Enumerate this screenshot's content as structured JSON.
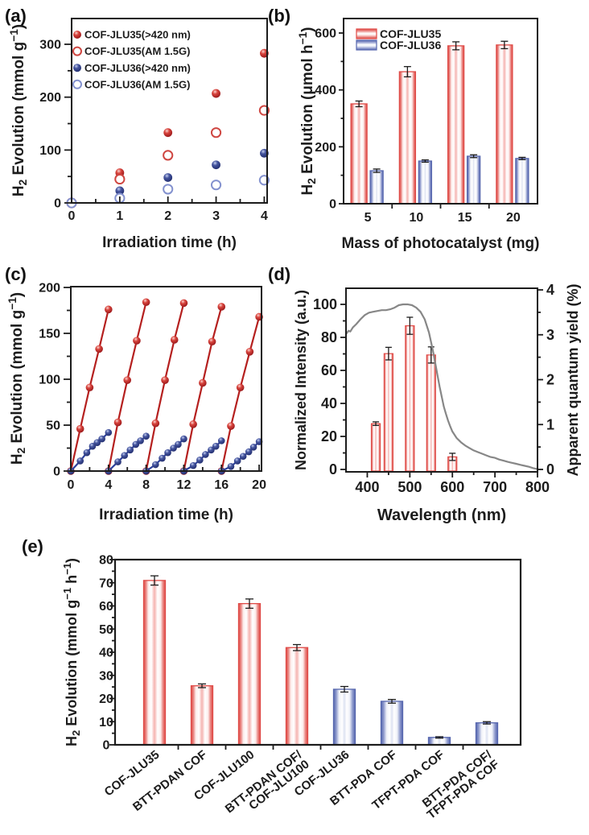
{
  "figure": {
    "panel_labels": {
      "a": "(a)",
      "b": "(b)",
      "c": "(c)",
      "d": "(d)",
      "e": "(e)"
    }
  },
  "colors": {
    "red_series": "#b5201f",
    "blue_series": "#2c3f9c",
    "bar_red_edge": "#df4a46",
    "bar_blue_edge": "#5666ae",
    "open_red_marker": "#cf4742",
    "open_blue_marker": "#8492cf",
    "curve_gray": "#878787",
    "ink": "#1c1c1c"
  },
  "chart_data": [
    {
      "id": "a",
      "type": "scatter",
      "xlabel": "Irradiation time (h)",
      "ylabel": "H~2~ Evolution (mmol g^−1^)",
      "xlim": [
        0,
        4.06
      ],
      "ylim": [
        0,
        350
      ],
      "xticks": [
        0,
        1,
        2,
        3,
        4
      ],
      "xticks_minor": [
        0.5,
        1.5,
        2.5,
        3.5
      ],
      "yticks": [
        0,
        100,
        200,
        300
      ],
      "yticks_minor": [
        50,
        150,
        250
      ],
      "x": [
        0,
        1,
        2,
        3,
        4
      ],
      "series": [
        {
          "name": "COF-JLU35(>420 nm)",
          "marker": "ball-red",
          "y": [
            0,
            57,
            133,
            207,
            283
          ]
        },
        {
          "name": "COF-JLU35(AM 1.5G)",
          "marker": "open-red",
          "y": [
            0,
            45,
            90,
            133,
            175
          ]
        },
        {
          "name": "COF-JLU36(>420 nm)",
          "marker": "ball-blue",
          "y": [
            0,
            23,
            48,
            72,
            94
          ]
        },
        {
          "name": "COF-JLU36(AM 1.5G)",
          "marker": "open-blue",
          "y": [
            0,
            9,
            26,
            34,
            43
          ]
        }
      ],
      "legend_position": "top-left"
    },
    {
      "id": "b",
      "type": "bar",
      "xlabel": "Mass of photocatalyst (mg)",
      "ylabel": "H~2~ Evolution (μmol h^−1^)",
      "categories": [
        "5",
        "10",
        "15",
        "20"
      ],
      "ylim": [
        0,
        650
      ],
      "yticks": [
        0,
        200,
        400,
        600
      ],
      "yticks_minor": [
        100,
        300,
        500
      ],
      "series": [
        {
          "name": "COF-JLU35",
          "color": "red",
          "values": [
            351,
            464,
            555,
            558
          ],
          "errors": [
            10,
            18,
            14,
            13
          ]
        },
        {
          "name": "COF-JLU36",
          "color": "blue",
          "values": [
            116,
            150,
            167,
            159
          ],
          "errors": [
            6,
            4,
            5,
            4
          ]
        }
      ],
      "legend_position": "top-left"
    },
    {
      "id": "c",
      "type": "line",
      "xlabel": "Irradiation time (h)",
      "ylabel": "H~2~ Evolution (mmol g^−1^)",
      "xlim": [
        0,
        20.25
      ],
      "ylim": [
        0,
        200
      ],
      "xticks": [
        0,
        4,
        8,
        12,
        16,
        20
      ],
      "xticks_minor": [
        2,
        6,
        10,
        14,
        18
      ],
      "yticks": [
        0,
        50,
        100,
        150,
        200
      ],
      "yticks_minor": [
        25,
        75,
        125,
        175
      ],
      "series": [
        {
          "name": "COF-JLU35",
          "color": "red",
          "cycles": [
            [
              [
                0,
                0
              ],
              [
                1,
                46
              ],
              [
                2,
                91
              ],
              [
                3,
                133
              ],
              [
                4,
                176
              ]
            ],
            [
              [
                4,
                0
              ],
              [
                5,
                53
              ],
              [
                6,
                99
              ],
              [
                7,
                142
              ],
              [
                8,
                184
              ]
            ],
            [
              [
                8,
                0
              ],
              [
                9,
                52
              ],
              [
                10,
                99
              ],
              [
                11,
                143
              ],
              [
                12,
                183
              ]
            ],
            [
              [
                12,
                0
              ],
              [
                13,
                51
              ],
              [
                14,
                96
              ],
              [
                15,
                141
              ],
              [
                16,
                179
              ]
            ],
            [
              [
                16,
                0
              ],
              [
                17,
                49
              ],
              [
                18,
                91
              ],
              [
                19,
                130
              ],
              [
                20,
                168
              ]
            ]
          ]
        },
        {
          "name": "COF-JLU36",
          "color": "blue",
          "cycles": [
            [
              [
                0,
                0
              ],
              [
                1,
                11
              ],
              [
                1.7,
                20
              ],
              [
                2.3,
                27
              ],
              [
                2.8,
                31
              ],
              [
                3.3,
                35
              ],
              [
                4,
                42
              ]
            ],
            [
              [
                4,
                0
              ],
              [
                5,
                10
              ],
              [
                5.7,
                17
              ],
              [
                6.3,
                23
              ],
              [
                6.9,
                29
              ],
              [
                7.4,
                33
              ],
              [
                8,
                38
              ]
            ],
            [
              [
                8,
                0
              ],
              [
                9,
                7
              ],
              [
                9.7,
                14
              ],
              [
                10.3,
                20
              ],
              [
                10.9,
                25
              ],
              [
                11.4,
                29
              ],
              [
                12,
                35
              ]
            ],
            [
              [
                12,
                0
              ],
              [
                13,
                6
              ],
              [
                13.7,
                12
              ],
              [
                14.3,
                18
              ],
              [
                14.9,
                23
              ],
              [
                15.4,
                27
              ],
              [
                16,
                33
              ]
            ],
            [
              [
                16,
                0
              ],
              [
                17,
                5
              ],
              [
                17.7,
                11
              ],
              [
                18.3,
                16
              ],
              [
                18.9,
                21
              ],
              [
                19.4,
                26
              ],
              [
                20,
                32
              ]
            ]
          ]
        }
      ]
    },
    {
      "id": "d",
      "type": "spectrum-bars",
      "xlabel": "Wavelength (nm)",
      "ylabel_left": "Normalized Intensity (a.u.)",
      "ylabel_right": "Apparent quantum yield (%)",
      "xlim": [
        350,
        800
      ],
      "ylim_left": [
        0,
        110
      ],
      "ylim_right": [
        0,
        4.04
      ],
      "xticks": [
        400,
        500,
        600,
        700,
        800
      ],
      "xticks_minor": [
        450,
        550,
        650,
        750
      ],
      "yticks_left": [
        0,
        20,
        40,
        60,
        80,
        100
      ],
      "yticks_left_minor": [
        10,
        30,
        50,
        70,
        90
      ],
      "yticks_right": [
        0,
        1,
        2,
        3,
        4
      ],
      "yticks_right_minor": [
        0.5,
        1.5,
        2.5,
        3.5
      ],
      "curve_name": "UV-vis absorption (normalized intensity)",
      "curve": [
        [
          350,
          82
        ],
        [
          356,
          84
        ],
        [
          360,
          83.5
        ],
        [
          366,
          86
        ],
        [
          374,
          88
        ],
        [
          384,
          91
        ],
        [
          394,
          93.5
        ],
        [
          404,
          95
        ],
        [
          414,
          95.5
        ],
        [
          424,
          96
        ],
        [
          434,
          96.5
        ],
        [
          444,
          96.5
        ],
        [
          454,
          97
        ],
        [
          464,
          98
        ],
        [
          474,
          99.5
        ],
        [
          484,
          100
        ],
        [
          495,
          100
        ],
        [
          505,
          99.5
        ],
        [
          515,
          98
        ],
        [
          525,
          95.5
        ],
        [
          535,
          91
        ],
        [
          545,
          83
        ],
        [
          550,
          77
        ],
        [
          555,
          71
        ],
        [
          560,
          64
        ],
        [
          565,
          57
        ],
        [
          570,
          50
        ],
        [
          575,
          44
        ],
        [
          580,
          38
        ],
        [
          585,
          33.5
        ],
        [
          590,
          29.5
        ],
        [
          595,
          26
        ],
        [
          600,
          23
        ],
        [
          610,
          19
        ],
        [
          620,
          16.5
        ],
        [
          630,
          14.5
        ],
        [
          640,
          13
        ],
        [
          650,
          11.5
        ],
        [
          660,
          10.5
        ],
        [
          670,
          9.5
        ],
        [
          680,
          8.5
        ],
        [
          690,
          7.5
        ],
        [
          700,
          7
        ],
        [
          710,
          6
        ],
        [
          720,
          5.3
        ],
        [
          730,
          4.6
        ],
        [
          740,
          4
        ],
        [
          750,
          3.4
        ],
        [
          760,
          2.8
        ],
        [
          770,
          2.2
        ],
        [
          780,
          1.6
        ],
        [
          790,
          0.8
        ],
        [
          800,
          0.2
        ]
      ],
      "bars_name": "Apparent quantum yield",
      "bars": {
        "wavelengths": [
          420,
          450,
          500,
          550,
          600
        ],
        "values": [
          1.02,
          2.58,
          3.2,
          2.55,
          0.28
        ],
        "errors": [
          0.04,
          0.14,
          0.19,
          0.18,
          0.08
        ]
      }
    },
    {
      "id": "e",
      "type": "bar",
      "ylabel": "H~2~ Evolution (mmol g^−1^ h^−1^)",
      "ylim": [
        0,
        80
      ],
      "yticks": [
        0,
        10,
        20,
        30,
        40,
        50,
        60,
        70,
        80
      ],
      "yticks_minor": [
        5,
        15,
        25,
        35,
        45,
        55,
        65,
        75
      ],
      "categories": [
        {
          "lines": [
            "COF-JLU35"
          ],
          "color": "red"
        },
        {
          "lines": [
            "BTT-PDAN COF"
          ],
          "color": "red"
        },
        {
          "lines": [
            "COF-JLU100"
          ],
          "color": "red"
        },
        {
          "lines": [
            "BTT-PDAN COF/",
            "COF-JLU100"
          ],
          "color": "red"
        },
        {
          "lines": [
            "COF-JLU36"
          ],
          "color": "blue"
        },
        {
          "lines": [
            "BTT-PDA COF"
          ],
          "color": "blue"
        },
        {
          "lines": [
            "TFPT-PDA COF"
          ],
          "color": "blue"
        },
        {
          "lines": [
            "BTT-PDA COF/",
            "TFPT-PDA COF"
          ],
          "color": "blue"
        }
      ],
      "values": [
        71,
        25.5,
        61,
        42,
        24,
        18.8,
        3.2,
        9.5
      ],
      "errors": [
        2,
        0.8,
        2,
        1.3,
        1.2,
        0.8,
        0.3,
        0.5
      ]
    }
  ]
}
